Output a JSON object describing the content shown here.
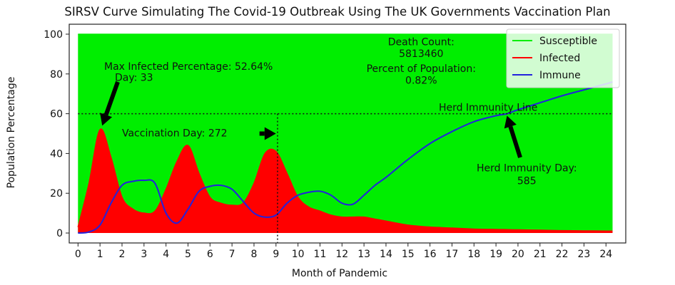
{
  "chart_data": {
    "type": "area",
    "title": "SIRSV Curve Simulating The Covid-19 Outbreak Using The UK Governments Vaccination Plan",
    "xlabel": "Month of Pandemic",
    "ylabel": "Population Percentage",
    "xlim": [
      -0.4,
      24.9
    ],
    "ylim": [
      -5,
      105
    ],
    "x_ticks": [
      "0",
      "1",
      "2",
      "3",
      "4",
      "5",
      "6",
      "7",
      "8",
      "9",
      "10",
      "11",
      "12",
      "13",
      "14",
      "15",
      "16",
      "17",
      "18",
      "19",
      "20",
      "21",
      "22",
      "23",
      "24"
    ],
    "y_ticks": [
      "0",
      "20",
      "40",
      "60",
      "80",
      "100"
    ],
    "legend": {
      "placement": "top-right",
      "entries": [
        "Susceptible",
        "Infected",
        "Immune"
      ]
    },
    "colors": {
      "susceptible": "#00ee00",
      "infected": "#ff0000",
      "immune": "#2222dd",
      "background": "#00ee00"
    },
    "x": [
      0,
      0.5,
      1,
      1.5,
      2,
      2.5,
      3,
      3.5,
      4,
      4.5,
      5,
      5.5,
      6,
      6.5,
      7,
      7.5,
      8,
      8.5,
      9,
      9.5,
      10,
      10.5,
      11,
      11.5,
      12,
      12.5,
      13,
      13.5,
      14,
      15,
      16,
      17,
      18,
      19,
      19.5,
      20,
      21,
      22,
      23,
      24,
      24.3
    ],
    "series": [
      {
        "name": "Susceptible",
        "values": [
          100,
          100,
          100,
          100,
          100,
          100,
          100,
          100,
          100,
          100,
          100,
          100,
          100,
          100,
          100,
          100,
          100,
          100,
          100,
          100,
          100,
          100,
          100,
          100,
          100,
          100,
          100,
          100,
          100,
          100,
          100,
          100,
          100,
          100,
          100,
          100,
          100,
          100,
          100,
          100,
          100
        ]
      },
      {
        "name": "Infected",
        "values": [
          3,
          25,
          52,
          38,
          18,
          12,
          10,
          11,
          22,
          36,
          44,
          30,
          18,
          15,
          14,
          15,
          25,
          40,
          41,
          30,
          18,
          13,
          11,
          9,
          8,
          8,
          8,
          7,
          6,
          4,
          3,
          2.5,
          2,
          1.8,
          1.7,
          1.6,
          1.4,
          1.2,
          1.1,
          1,
          1
        ]
      },
      {
        "name": "Immune",
        "values": [
          0,
          0.5,
          4,
          15,
          24,
          26,
          26.5,
          25,
          10,
          5,
          12,
          21,
          23.5,
          24,
          22,
          16,
          10,
          8,
          9,
          15,
          19,
          20.5,
          21,
          19,
          15,
          14.5,
          19,
          24,
          28,
          37,
          45,
          51,
          56,
          59,
          60,
          62,
          65.5,
          69,
          72,
          75,
          76
        ]
      }
    ],
    "reference_line": {
      "y": 60,
      "label": "Herd Immunity Line"
    },
    "vaccination_line": {
      "x": 9.07,
      "label": "Vaccination Day: 272"
    },
    "annotations": {
      "max_infected_line1": "Max Infected Percentage: 52.64%",
      "max_infected_line2": "Day: 33",
      "death_count_label": "Death Count:",
      "death_count_value": "5813460",
      "percent_label": "Percent of Population:",
      "percent_value": "0.82%",
      "herd_day_label": "Herd Immunity Day:",
      "herd_day_value": "585"
    },
    "grid": false
  }
}
